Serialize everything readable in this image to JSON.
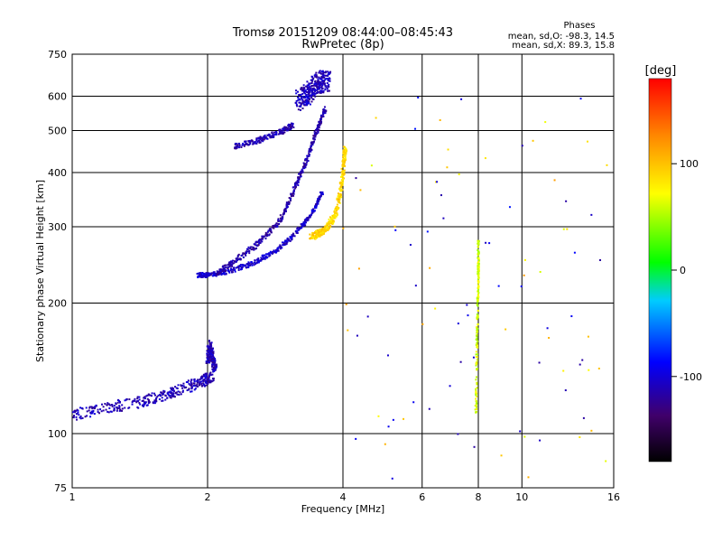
{
  "chart_data": {
    "type": "scatter",
    "title": "Tromsø 20151209 08:44:00–08:45:43",
    "subtitle": "RwPretec (8p)",
    "xlabel": "Frequency [MHz]",
    "ylabel": "Stationary phase Virtual Height [km]",
    "x_scale": "log",
    "y_scale": "log",
    "xlim": [
      1,
      16
    ],
    "ylim": [
      75,
      750
    ],
    "x_ticks": [
      1,
      2,
      4,
      6,
      8,
      10,
      16
    ],
    "x_tick_labels": [
      "1",
      "2",
      "4",
      "6",
      "8",
      "10",
      "16"
    ],
    "y_ticks": [
      75,
      100,
      200,
      300,
      400,
      500,
      600,
      750
    ],
    "y_tick_labels": [
      "75",
      "100",
      "200",
      "300",
      "400",
      "500",
      "600",
      "750"
    ],
    "grid": true,
    "stats": {
      "header": "Phases",
      "line1": "mean, sd,O:  -98.3, 14.5",
      "line2": "mean, sd,X:  89.3, 15.8"
    },
    "colorbar": {
      "label": "[deg]",
      "range": [
        -180,
        180
      ],
      "ticks": [
        100,
        0,
        -100
      ],
      "tick_labels": [
        "100",
        "0",
        "-100"
      ]
    },
    "traces": [
      {
        "x": [
          1.0,
          1.2,
          1.4,
          1.6,
          1.8,
          1.95,
          2.05
        ],
        "y": [
          110,
          115,
          118,
          122,
          128,
          132,
          136
        ],
        "phase": -110,
        "spread": 0.06
      },
      {
        "x": [
          2.0,
          2.02,
          2.05,
          2.08
        ],
        "y": [
          145,
          160,
          150,
          140
        ],
        "phase": -112,
        "spread": 0.05
      },
      {
        "x": [
          1.9,
          2.0,
          2.2,
          2.5,
          2.8,
          3.1,
          3.4,
          3.6
        ],
        "y": [
          232,
          232,
          236,
          246,
          262,
          285,
          320,
          360
        ],
        "phase": -105,
        "spread": 0.025
      },
      {
        "x": [
          2.1,
          2.3,
          2.6,
          2.9,
          3.1,
          3.3,
          3.5,
          3.65
        ],
        "y": [
          234,
          250,
          275,
          310,
          360,
          420,
          500,
          560
        ],
        "phase": -115,
        "spread": 0.03
      },
      {
        "x": [
          3.2,
          3.3,
          3.4,
          3.5,
          3.6,
          3.7
        ],
        "y": [
          580,
          600,
          620,
          640,
          650,
          650
        ],
        "phase": -110,
        "spread": 0.12
      },
      {
        "x": [
          3.4,
          3.55,
          3.7,
          3.85,
          3.95,
          4.02,
          4.05
        ],
        "y": [
          285,
          290,
          300,
          320,
          360,
          420,
          460
        ],
        "phase": 90,
        "spread": 0.04
      },
      {
        "x": [
          2.3,
          2.6,
          2.9,
          3.1
        ],
        "y": [
          460,
          475,
          495,
          515
        ],
        "phase": -112,
        "spread": 0.03
      },
      {
        "x": [
          7.9,
          7.95,
          8.0,
          8.0
        ],
        "y": [
          110,
          170,
          230,
          280
        ],
        "phase": 60,
        "spread": 0.02
      }
    ]
  }
}
